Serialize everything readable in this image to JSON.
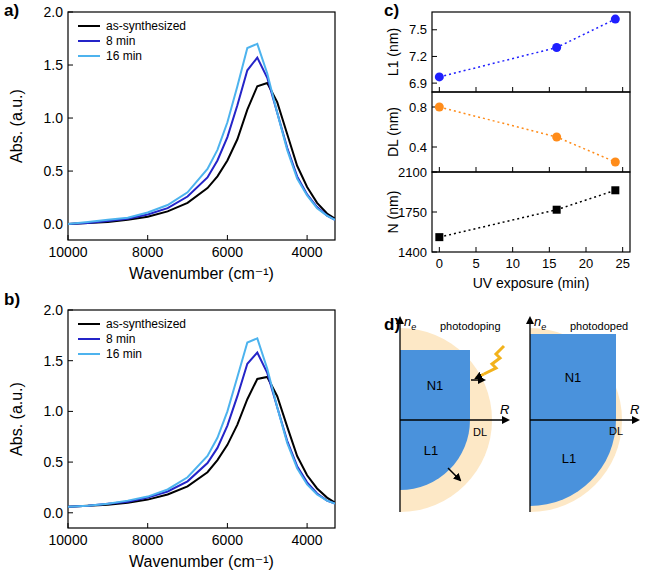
{
  "chart_data": [
    {
      "panel": "a)",
      "type": "line",
      "x_label": "Wavenumber (cm⁻¹)",
      "y_label": "Abs. (a.u.)",
      "x": [
        10000,
        9500,
        9000,
        8500,
        8000,
        7500,
        7000,
        6500,
        6250,
        6000,
        5750,
        5500,
        5250,
        5000,
        4750,
        4500,
        4250,
        4000,
        3750,
        3500,
        3300
      ],
      "series": [
        {
          "name": "as-synthesized",
          "color": "#000000",
          "line_style": "solid",
          "values": [
            0.0,
            0.01,
            0.02,
            0.04,
            0.07,
            0.12,
            0.2,
            0.34,
            0.45,
            0.6,
            0.8,
            1.08,
            1.3,
            1.33,
            1.15,
            0.85,
            0.55,
            0.35,
            0.2,
            0.1,
            0.05
          ]
        },
        {
          "name": "8 min",
          "color": "#2424c8",
          "line_style": "solid",
          "values": [
            0.0,
            0.01,
            0.03,
            0.05,
            0.09,
            0.15,
            0.26,
            0.44,
            0.6,
            0.82,
            1.12,
            1.45,
            1.57,
            1.38,
            1.05,
            0.72,
            0.45,
            0.28,
            0.16,
            0.08,
            0.04
          ]
        },
        {
          "name": "16 min",
          "color": "#4db3ee",
          "line_style": "solid",
          "values": [
            0.0,
            0.02,
            0.04,
            0.06,
            0.11,
            0.18,
            0.3,
            0.52,
            0.7,
            0.96,
            1.3,
            1.66,
            1.7,
            1.42,
            1.05,
            0.7,
            0.43,
            0.27,
            0.15,
            0.08,
            0.04
          ]
        }
      ],
      "xlim": [
        10000,
        3300
      ],
      "xticks": [
        10000,
        8000,
        6000,
        4000
      ],
      "ylim": [
        -0.15,
        2.0
      ],
      "yticks": [
        {
          "value": 0,
          "label": "0.0"
        },
        {
          "value": 0.5,
          "label": "0.5"
        },
        {
          "value": 1,
          "label": "1.0"
        },
        {
          "value": 1.5,
          "label": "1.5"
        },
        {
          "value": 2,
          "label": "2.0"
        }
      ],
      "legend": "upper left",
      "grid": false
    },
    {
      "panel": "b)",
      "type": "line",
      "x_label": "Wavenumber (cm⁻¹)",
      "y_label": "Abs. (a.u.)",
      "x": [
        10000,
        9500,
        9000,
        8500,
        8000,
        7500,
        7000,
        6500,
        6250,
        6000,
        5750,
        5500,
        5250,
        5000,
        4750,
        4500,
        4250,
        4000,
        3750,
        3500,
        3300
      ],
      "series": [
        {
          "name": "as-synthesized",
          "color": "#000000",
          "line_style": "solid",
          "values": [
            0.06,
            0.07,
            0.08,
            0.1,
            0.13,
            0.18,
            0.26,
            0.4,
            0.52,
            0.67,
            0.87,
            1.12,
            1.32,
            1.34,
            1.15,
            0.85,
            0.56,
            0.37,
            0.24,
            0.15,
            0.1
          ]
        },
        {
          "name": "8 min",
          "color": "#2424c8",
          "line_style": "solid",
          "values": [
            0.06,
            0.07,
            0.09,
            0.11,
            0.15,
            0.21,
            0.31,
            0.49,
            0.64,
            0.86,
            1.15,
            1.47,
            1.58,
            1.38,
            1.04,
            0.71,
            0.46,
            0.3,
            0.19,
            0.12,
            0.09
          ]
        },
        {
          "name": "16 min",
          "color": "#4db3ee",
          "line_style": "solid",
          "values": [
            0.06,
            0.07,
            0.09,
            0.12,
            0.16,
            0.23,
            0.35,
            0.56,
            0.74,
            1.0,
            1.34,
            1.68,
            1.72,
            1.42,
            1.04,
            0.69,
            0.44,
            0.28,
            0.18,
            0.12,
            0.09
          ]
        }
      ],
      "xlim": [
        10000,
        3300
      ],
      "xticks": [
        10000,
        8000,
        6000,
        4000
      ],
      "ylim": [
        -0.15,
        2.0
      ],
      "yticks": [
        {
          "value": 0,
          "label": "0.0"
        },
        {
          "value": 0.5,
          "label": "0.5"
        },
        {
          "value": 1,
          "label": "1.0"
        },
        {
          "value": 1.5,
          "label": "1.5"
        },
        {
          "value": 2,
          "label": "2.0"
        }
      ],
      "legend": "upper left",
      "grid": false
    },
    {
      "panel": "c)",
      "type": "line",
      "y_label": "L1 (nm)",
      "x": [
        0,
        16,
        24
      ],
      "series": [
        {
          "color": "#1f1fff",
          "marker": "circle",
          "line_style": "dotted",
          "values": [
            6.97,
            7.3,
            7.62
          ]
        }
      ],
      "xlim": [
        -1,
        26
      ],
      "xticks": [
        0,
        5,
        10,
        15,
        20,
        25
      ],
      "ylim": [
        6.8,
        7.7
      ],
      "yticks": [
        6.9,
        7.2,
        7.5
      ],
      "tick_labels": "y",
      "grid": false
    },
    {
      "type": "line",
      "y_label": "DL (nm)",
      "x": [
        0,
        16,
        24
      ],
      "series": [
        {
          "color": "#ff8c1a",
          "marker": "circle",
          "line_style": "dotted",
          "values": [
            0.8,
            0.5,
            0.25
          ]
        }
      ],
      "xlim": [
        -1,
        26
      ],
      "xticks": [
        0,
        5,
        10,
        15,
        20,
        25
      ],
      "ylim": [
        0.15,
        0.95
      ],
      "yticks": [
        0.4,
        0.8
      ],
      "tick_labels": "y",
      "grid": false
    },
    {
      "type": "line",
      "y_label": "N (nm)",
      "x_label": "UV exposure (min)",
      "x": [
        0,
        16,
        24
      ],
      "series": [
        {
          "color": "#000000",
          "marker": "square",
          "line_style": "dotted",
          "values": [
            1530,
            1770,
            1940
          ]
        }
      ],
      "xlim": [
        -1,
        26
      ],
      "xticks": [
        0,
        5,
        10,
        15,
        20,
        25
      ],
      "ylim": [
        1400,
        2100
      ],
      "yticks": [
        1400,
        1750,
        2100
      ],
      "grid": false
    }
  ],
  "diagram": {
    "panel": "d)",
    "axis_y": {
      "text": "n",
      "sub": "e"
    },
    "axis_x": "R",
    "panels": [
      {
        "title": "photodoping",
        "upper": "N1",
        "lower": "L1",
        "shell": "DL"
      },
      {
        "title": "photodoped",
        "upper": "N1",
        "lower": "L1",
        "shell": "DL"
      }
    ]
  }
}
